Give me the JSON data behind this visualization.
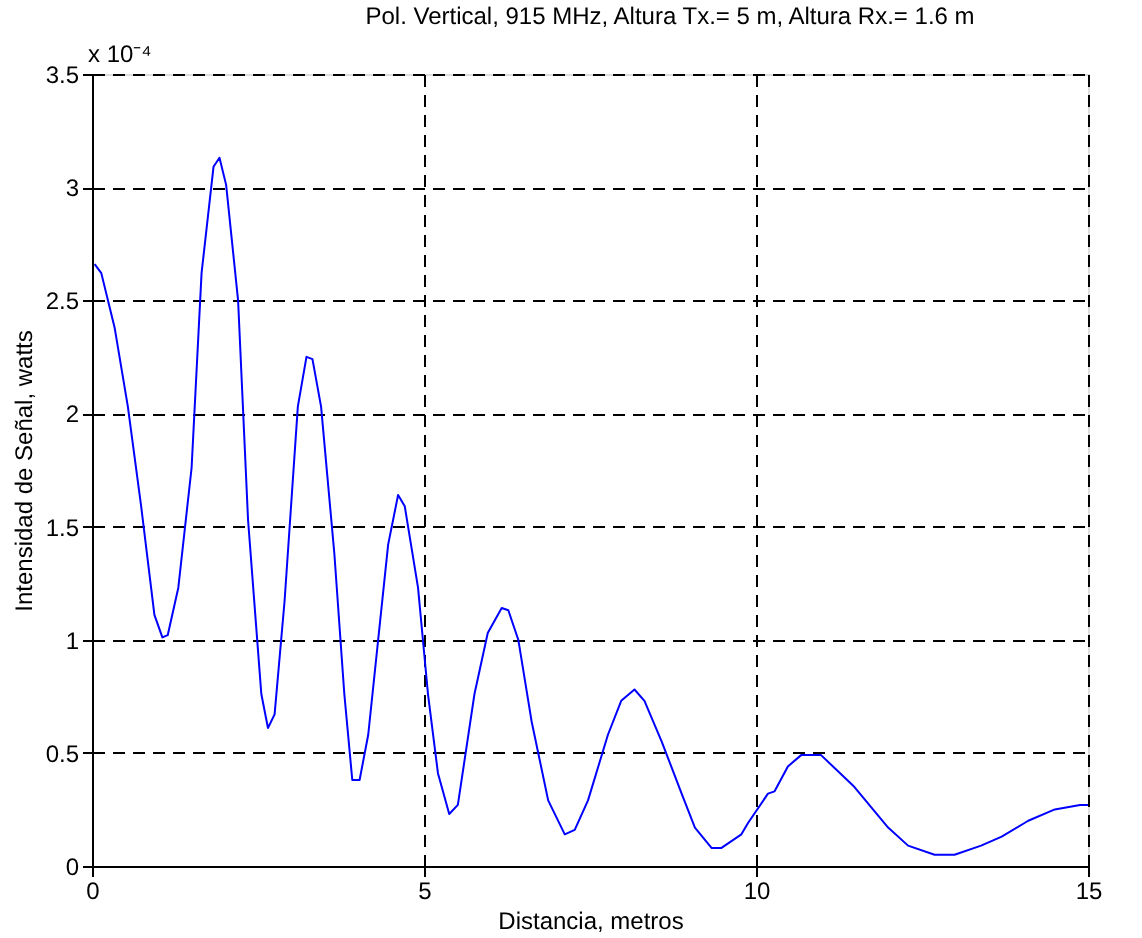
{
  "chart_data": {
    "type": "line",
    "title": "Pol. Vertical, 915 MHz, Altura Tx.= 5 m, Altura Rx.= 1.6 m",
    "xlabel": "Distancia, metros",
    "ylabel": "Intensidad de Señal, watts",
    "annotations": [
      "x 10⁻⁴"
    ],
    "series": [
      {
        "color": "#0000ff",
        "x": [
          0.04,
          0.14,
          0.34,
          0.54,
          0.74,
          0.94,
          1.06,
          1.14,
          1.3,
          1.5,
          1.65,
          1.83,
          1.92,
          2.02,
          2.2,
          2.35,
          2.55,
          2.65,
          2.75,
          2.9,
          3.1,
          3.23,
          3.32,
          3.45,
          3.65,
          3.8,
          3.92,
          4.03,
          4.16,
          4.31,
          4.46,
          4.61,
          4.71,
          4.91,
          5.06,
          5.21,
          5.38,
          5.51,
          5.76,
          5.96,
          6.17,
          6.27,
          6.42,
          6.62,
          6.87,
          7.12,
          7.27,
          7.47,
          7.77,
          7.97,
          8.17,
          8.32,
          8.58,
          8.88,
          9.08,
          9.33,
          9.48,
          9.78,
          9.88,
          10.18,
          10.28,
          10.48,
          10.68,
          10.98,
          11.48,
          11.99,
          12.29,
          12.69,
          12.99,
          13.39,
          13.7,
          14.1,
          14.5,
          14.88,
          15.0
        ],
        "values": [
          2.66,
          2.62,
          2.38,
          2.03,
          1.59,
          1.11,
          1.01,
          1.02,
          1.23,
          1.76,
          2.62,
          3.09,
          3.13,
          3.01,
          2.5,
          1.53,
          0.76,
          0.61,
          0.67,
          1.17,
          2.03,
          2.25,
          2.24,
          2.03,
          1.38,
          0.76,
          0.38,
          0.38,
          0.58,
          1.0,
          1.42,
          1.64,
          1.59,
          1.23,
          0.76,
          0.41,
          0.23,
          0.27,
          0.76,
          1.03,
          1.14,
          1.13,
          1.0,
          0.64,
          0.29,
          0.14,
          0.16,
          0.29,
          0.58,
          0.73,
          0.78,
          0.73,
          0.55,
          0.32,
          0.17,
          0.08,
          0.08,
          0.14,
          0.19,
          0.32,
          0.33,
          0.44,
          0.49,
          0.49,
          0.35,
          0.17,
          0.09,
          0.05,
          0.05,
          0.09,
          0.13,
          0.2,
          0.25,
          0.27,
          0.27
        ]
      }
    ],
    "xlim": [
      0,
      15
    ],
    "xticks": [
      0,
      5,
      10,
      15
    ],
    "ylim": [
      0,
      3.5
    ],
    "yticks": [
      0,
      0.5,
      1,
      1.5,
      2,
      2.5,
      3,
      3.5
    ],
    "grid": true,
    "line_style": "solid",
    "marker": "none"
  }
}
